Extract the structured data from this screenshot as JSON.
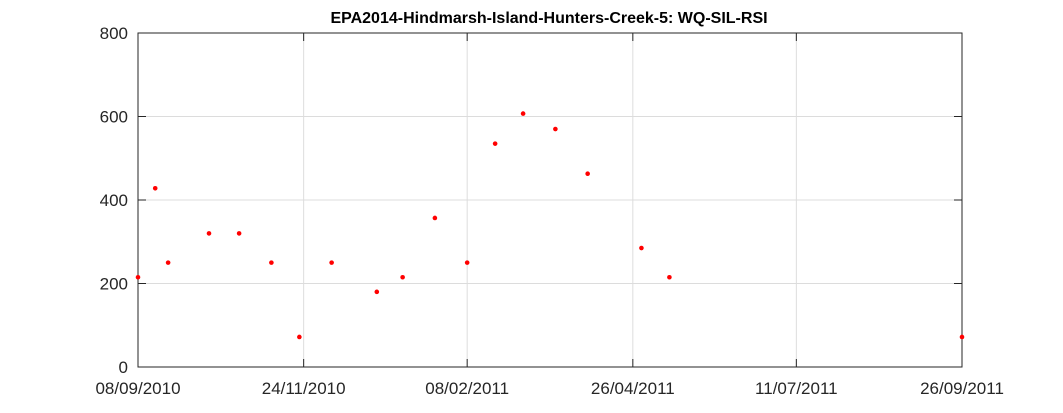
{
  "chart_data": {
    "type": "scatter",
    "title": "EPA2014-Hindmarsh-Island-Hunters-Creek-5: WQ-SIL-RSI",
    "xlabel": "",
    "ylabel": "",
    "x_axis": {
      "kind": "date",
      "range": [
        "2010-09-08",
        "2011-09-26"
      ],
      "ticks": [
        {
          "date": "2010-09-08",
          "label": "08/09/2010"
        },
        {
          "date": "2010-11-24",
          "label": "24/11/2010"
        },
        {
          "date": "2011-02-08",
          "label": "08/02/2011"
        },
        {
          "date": "2011-04-26",
          "label": "26/04/2011"
        },
        {
          "date": "2011-07-11",
          "label": "11/07/2011"
        },
        {
          "date": "2011-09-26",
          "label": "26/09/2011"
        }
      ]
    },
    "y_axis": {
      "range": [
        0,
        800
      ],
      "ticks": [
        0,
        200,
        400,
        600,
        800
      ]
    },
    "grid": true,
    "legend": "none",
    "marker_color": "#ff0000",
    "series": [
      {
        "points": [
          {
            "x": "2010-09-08",
            "y": 215
          },
          {
            "x": "2010-09-16",
            "y": 428
          },
          {
            "x": "2010-09-22",
            "y": 250
          },
          {
            "x": "2010-10-11",
            "y": 320
          },
          {
            "x": "2010-10-25",
            "y": 320
          },
          {
            "x": "2010-11-09",
            "y": 250
          },
          {
            "x": "2010-11-22",
            "y": 72
          },
          {
            "x": "2010-12-07",
            "y": 250
          },
          {
            "x": "2010-12-28",
            "y": 180
          },
          {
            "x": "2011-01-09",
            "y": 215
          },
          {
            "x": "2011-01-24",
            "y": 357
          },
          {
            "x": "2011-02-08",
            "y": 250
          },
          {
            "x": "2011-02-21",
            "y": 535
          },
          {
            "x": "2011-03-06",
            "y": 607
          },
          {
            "x": "2011-03-21",
            "y": 570
          },
          {
            "x": "2011-04-05",
            "y": 463
          },
          {
            "x": "2011-04-30",
            "y": 285
          },
          {
            "x": "2011-05-13",
            "y": 215
          },
          {
            "x": "2011-09-26",
            "y": 72
          }
        ]
      }
    ]
  }
}
